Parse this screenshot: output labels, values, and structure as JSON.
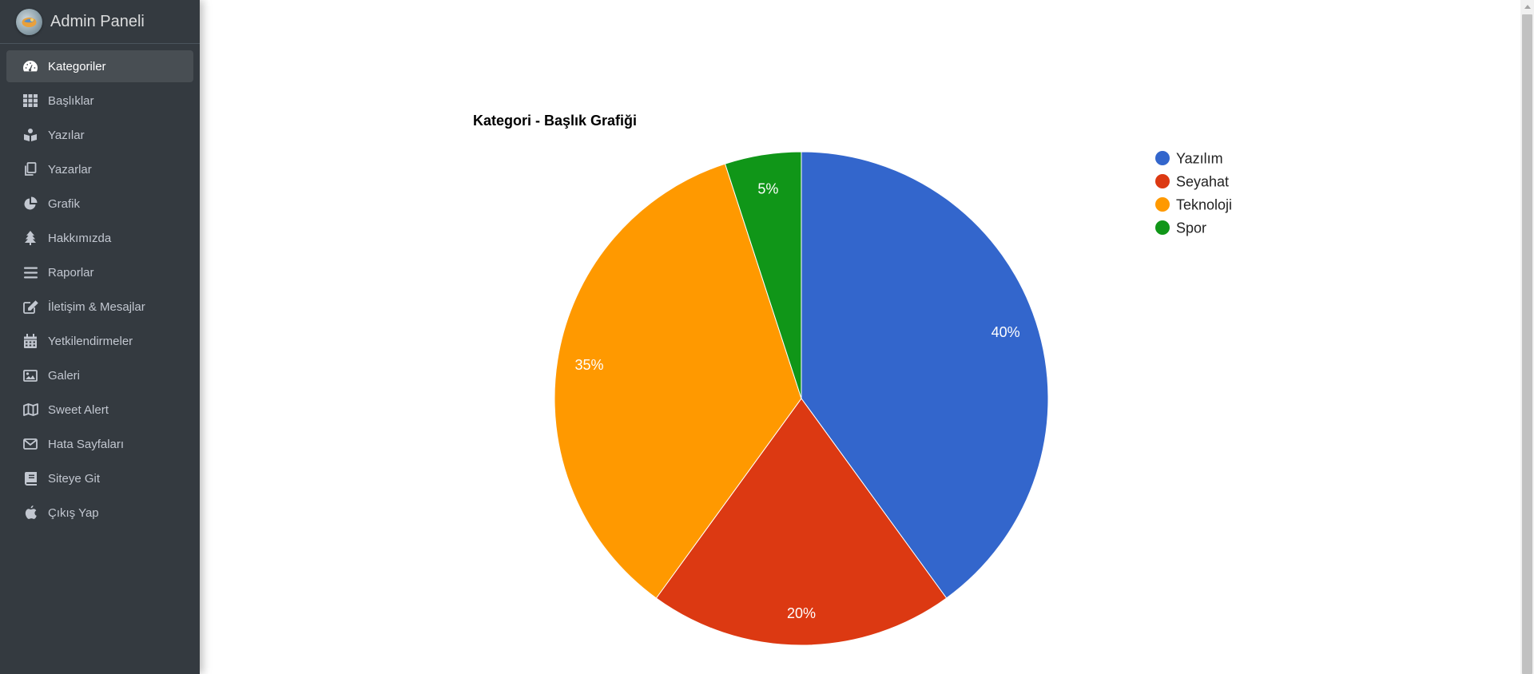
{
  "brand": {
    "title": "Admin Paneli"
  },
  "sidebar": {
    "items": [
      {
        "label": "Kategoriler",
        "icon": "dashboard-icon",
        "active": true
      },
      {
        "label": "Başlıklar",
        "icon": "grid-icon"
      },
      {
        "label": "Yazılar",
        "icon": "book-reader-icon"
      },
      {
        "label": "Yazarlar",
        "icon": "copy-icon"
      },
      {
        "label": "Grafik",
        "icon": "pie-chart-icon"
      },
      {
        "label": "Hakkımızda",
        "icon": "tree-icon"
      },
      {
        "label": "Raporlar",
        "icon": "bars-icon"
      },
      {
        "label": "İletişim & Mesajlar",
        "icon": "edit-icon"
      },
      {
        "label": "Yetkilendirmeler",
        "icon": "calendar-icon"
      },
      {
        "label": "Galeri",
        "icon": "image-icon"
      },
      {
        "label": "Sweet Alert",
        "icon": "map-icon"
      },
      {
        "label": "Hata Sayfaları",
        "icon": "envelope-icon"
      },
      {
        "label": "Siteye Git",
        "icon": "book-icon"
      },
      {
        "label": "Çıkış Yap",
        "icon": "apple-icon"
      }
    ]
  },
  "chart_data": {
    "type": "pie",
    "title": "Kategori - Başlık Grafiği",
    "categories": [
      "Yazılım",
      "Seyahat",
      "Teknoloji",
      "Spor"
    ],
    "values": [
      40,
      20,
      35,
      5
    ],
    "labels": [
      "40%",
      "20%",
      "35%",
      "5%"
    ],
    "colors": [
      "#3366cc",
      "#dc3912",
      "#ff9900",
      "#109618"
    ],
    "legend": "right"
  }
}
